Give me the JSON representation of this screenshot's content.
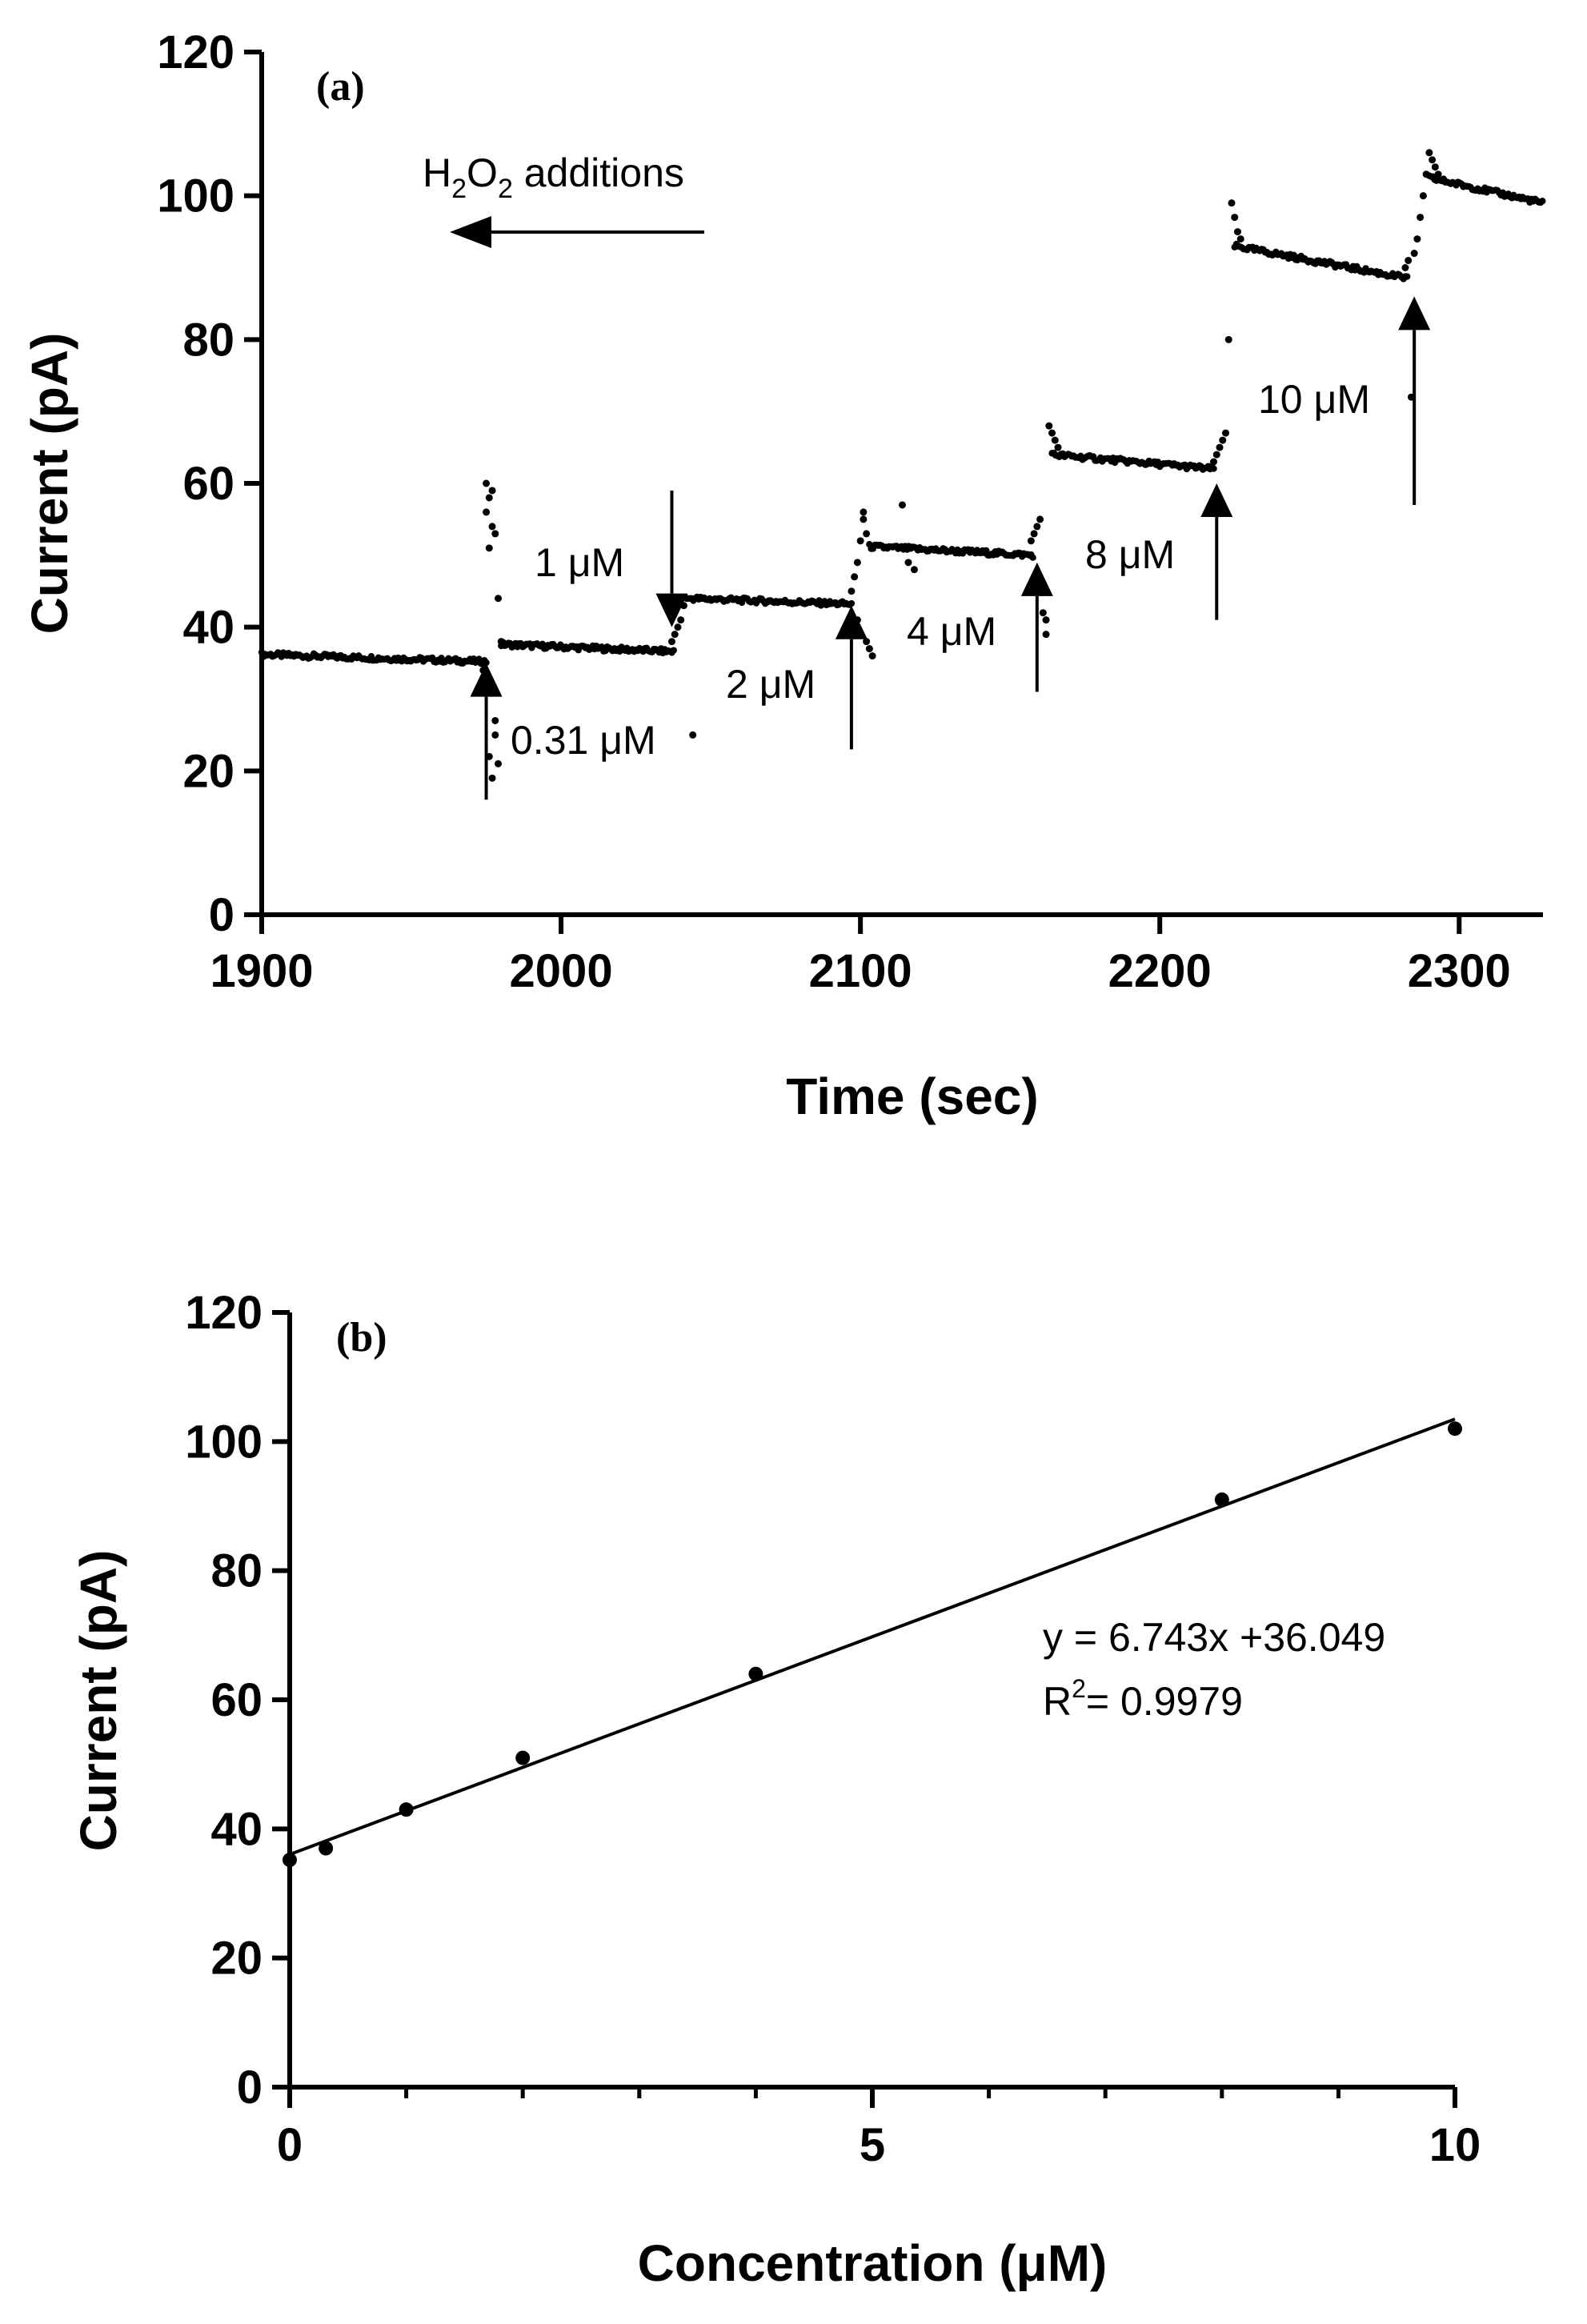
{
  "colors": {
    "ink": "#000000",
    "background": "#ffffff"
  },
  "chart_data": [
    {
      "type": "scatter",
      "panel_label": "(a)",
      "xlabel": "Time (sec)",
      "ylabel": "Current (pA)",
      "xlim": [
        1900,
        2328
      ],
      "ylim": [
        0,
        120
      ],
      "xticks": [
        1900,
        2000,
        2100,
        2200,
        2300
      ],
      "yticks": [
        0,
        20,
        40,
        60,
        80,
        100,
        120
      ],
      "grid": false,
      "legend": "none",
      "plateaus": [
        {
          "x_start": 1900,
          "x_end": 1975,
          "y_start": 36.2,
          "y_end": 35.2
        },
        {
          "x_start": 1980,
          "x_end": 2038,
          "y_start": 37.6,
          "y_end": 36.6
        },
        {
          "x_start": 2043,
          "x_end": 2097,
          "y_start": 44.0,
          "y_end": 43.2
        },
        {
          "x_start": 2103,
          "x_end": 2158,
          "y_start": 51.2,
          "y_end": 50.0
        },
        {
          "x_start": 2164,
          "x_end": 2218,
          "y_start": 64.0,
          "y_end": 62.0
        },
        {
          "x_start": 2225,
          "x_end": 2283,
          "y_start": 93.0,
          "y_end": 88.5
        },
        {
          "x_start": 2290,
          "x_end": 2328,
          "y_start": 102.5,
          "y_end": 99.0
        }
      ],
      "transient_points": [
        {
          "x": 1974,
          "y": 34
        },
        {
          "x": 1975,
          "y": 31
        },
        {
          "x": 1976,
          "y": 22
        },
        {
          "x": 1977,
          "y": 19
        },
        {
          "x": 1978,
          "y": 25
        },
        {
          "x": 1978,
          "y": 27
        },
        {
          "x": 1979,
          "y": 21
        },
        {
          "x": 1975,
          "y": 56
        },
        {
          "x": 1975,
          "y": 60
        },
        {
          "x": 1976,
          "y": 58
        },
        {
          "x": 1976,
          "y": 51
        },
        {
          "x": 1977,
          "y": 59
        },
        {
          "x": 1977,
          "y": 54
        },
        {
          "x": 1978,
          "y": 53
        },
        {
          "x": 1979,
          "y": 44
        },
        {
          "x": 1980,
          "y": 38
        },
        {
          "x": 2044,
          "y": 25
        },
        {
          "x": 2037,
          "y": 38
        },
        {
          "x": 2038,
          "y": 39
        },
        {
          "x": 2039,
          "y": 40
        },
        {
          "x": 2040,
          "y": 41
        },
        {
          "x": 2041,
          "y": 43
        },
        {
          "x": 2042,
          "y": 44
        },
        {
          "x": 2096,
          "y": 40
        },
        {
          "x": 2097,
          "y": 45
        },
        {
          "x": 2098,
          "y": 47
        },
        {
          "x": 2099,
          "y": 49
        },
        {
          "x": 2100,
          "y": 52
        },
        {
          "x": 2101,
          "y": 55
        },
        {
          "x": 2101,
          "y": 56
        },
        {
          "x": 2102,
          "y": 53
        },
        {
          "x": 2102,
          "y": 38
        },
        {
          "x": 2103,
          "y": 37
        },
        {
          "x": 2104,
          "y": 36
        },
        {
          "x": 2099,
          "y": 41
        },
        {
          "x": 2114,
          "y": 57
        },
        {
          "x": 2118,
          "y": 48
        },
        {
          "x": 2116,
          "y": 49
        },
        {
          "x": 2157,
          "y": 52
        },
        {
          "x": 2158,
          "y": 53
        },
        {
          "x": 2159,
          "y": 54
        },
        {
          "x": 2160,
          "y": 55
        },
        {
          "x": 2161,
          "y": 42
        },
        {
          "x": 2162,
          "y": 41
        },
        {
          "x": 2162,
          "y": 39
        },
        {
          "x": 2163,
          "y": 68
        },
        {
          "x": 2164,
          "y": 67
        },
        {
          "x": 2165,
          "y": 66
        },
        {
          "x": 2166,
          "y": 65
        },
        {
          "x": 2218,
          "y": 63
        },
        {
          "x": 2219,
          "y": 64
        },
        {
          "x": 2220,
          "y": 65
        },
        {
          "x": 2221,
          "y": 66
        },
        {
          "x": 2222,
          "y": 67
        },
        {
          "x": 2223,
          "y": 80
        },
        {
          "x": 2224,
          "y": 99
        },
        {
          "x": 2225,
          "y": 97
        },
        {
          "x": 2226,
          "y": 95
        },
        {
          "x": 2227,
          "y": 94
        },
        {
          "x": 2284,
          "y": 72
        },
        {
          "x": 2282,
          "y": 90
        },
        {
          "x": 2283,
          "y": 91
        },
        {
          "x": 2285,
          "y": 92
        },
        {
          "x": 2286,
          "y": 94
        },
        {
          "x": 2287,
          "y": 97
        },
        {
          "x": 2288,
          "y": 100
        },
        {
          "x": 2289,
          "y": 103
        },
        {
          "x": 2290,
          "y": 106
        },
        {
          "x": 2291,
          "y": 105
        },
        {
          "x": 2292,
          "y": 104
        },
        {
          "x": 2293,
          "y": 103
        }
      ],
      "annotations": {
        "direction_label": {
          "main": "H",
          "sub1": "2",
          "mid": "O",
          "sub2": "2",
          "rest": " additions"
        },
        "additions": [
          {
            "label": "0.31 μM",
            "arrow": "up",
            "x": 1975,
            "y_from": 16,
            "y_to": 35
          },
          {
            "label": "1 μM",
            "arrow": "down",
            "x": 2037,
            "y_from": 59,
            "y_to": 40
          },
          {
            "label": "2 μM",
            "arrow": "up",
            "x": 2097,
            "y_from": 23,
            "y_to": 43
          },
          {
            "label": "4 μM",
            "arrow": "up",
            "x": 2159,
            "y_from": 31,
            "y_to": 49
          },
          {
            "label": "8 μM",
            "arrow": "up",
            "x": 2219,
            "y_from": 41,
            "y_to": 60
          },
          {
            "label": "10 μM",
            "arrow": "up",
            "x": 2285,
            "y_from": 57,
            "y_to": 86
          }
        ]
      }
    },
    {
      "type": "scatter",
      "panel_label": "(b)",
      "xlabel": "Concentration (μM)",
      "ylabel": "Current (pA)",
      "xlim": [
        0,
        10
      ],
      "ylim": [
        0,
        120
      ],
      "xticks": [
        0,
        5,
        10
      ],
      "xminor": [
        1,
        2,
        3,
        4,
        6,
        7,
        8,
        9
      ],
      "yticks": [
        0,
        20,
        40,
        60,
        80,
        100,
        120
      ],
      "grid": false,
      "legend": "none",
      "points": [
        {
          "x": 0,
          "y": 35.2
        },
        {
          "x": 0.31,
          "y": 37
        },
        {
          "x": 1,
          "y": 43
        },
        {
          "x": 2,
          "y": 51
        },
        {
          "x": 4,
          "y": 64
        },
        {
          "x": 8,
          "y": 91
        },
        {
          "x": 10,
          "y": 102
        }
      ],
      "fit": {
        "slope": 6.743,
        "intercept": 36.049,
        "x_range": [
          0,
          10
        ]
      },
      "equation_text": "y = 6.743x +36.049",
      "r2_text": {
        "main": "R",
        "sup": "2",
        "rest": "= 0.9979"
      }
    }
  ]
}
